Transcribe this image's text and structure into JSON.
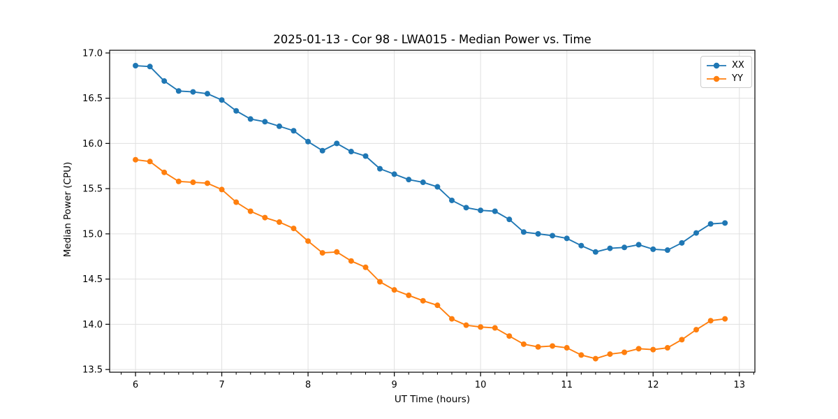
{
  "figure": {
    "title": "2025-01-13 - Cor 98 - LWA015 - Median Power vs. Time"
  },
  "chart_data": {
    "type": "line",
    "title": "2025-01-13 - Cor 98 - LWA015 - Median Power vs. Time",
    "xlabel": "UT Time (hours)",
    "ylabel": "Median Power (CPU)",
    "xlim": [
      5.7,
      13.18
    ],
    "ylim": [
      13.47,
      17.03
    ],
    "xticks": [
      6,
      7,
      8,
      9,
      10,
      11,
      12,
      13
    ],
    "xtick_labels": [
      "6",
      "7",
      "8",
      "9",
      "10",
      "11",
      "12",
      "13"
    ],
    "yticks": [
      13.5,
      14.0,
      14.5,
      15.0,
      15.5,
      16.0,
      16.5,
      17.0
    ],
    "ytick_labels": [
      "13.5",
      "14.0",
      "14.5",
      "15.0",
      "15.5",
      "16.0",
      "16.5",
      "17.0"
    ],
    "minor_xtick_step": 0.1667,
    "grid": true,
    "grid_color": "#e0e0e0",
    "legend_position": "upper right",
    "x": [
      6.0,
      6.167,
      6.333,
      6.5,
      6.667,
      6.833,
      7.0,
      7.167,
      7.333,
      7.5,
      7.667,
      7.833,
      8.0,
      8.167,
      8.333,
      8.5,
      8.667,
      8.833,
      9.0,
      9.167,
      9.333,
      9.5,
      9.667,
      9.833,
      10.0,
      10.167,
      10.333,
      10.5,
      10.667,
      10.833,
      11.0,
      11.167,
      11.333,
      11.5,
      11.667,
      11.833,
      12.0,
      12.167,
      12.333,
      12.5,
      12.667,
      12.833
    ],
    "series": [
      {
        "name": "XX",
        "color": "#1f77b4",
        "values": [
          16.86,
          16.85,
          16.69,
          16.58,
          16.57,
          16.55,
          16.48,
          16.36,
          16.27,
          16.24,
          16.19,
          16.14,
          16.02,
          15.92,
          16.0,
          15.91,
          15.86,
          15.72,
          15.66,
          15.6,
          15.57,
          15.52,
          15.37,
          15.29,
          15.26,
          15.25,
          15.16,
          15.02,
          15.0,
          14.98,
          14.95,
          14.87,
          14.8,
          14.84,
          14.85,
          14.88,
          14.83,
          14.82,
          14.9,
          15.01,
          15.11,
          15.12
        ]
      },
      {
        "name": "YY",
        "color": "#ff7f0e",
        "values": [
          15.82,
          15.8,
          15.68,
          15.58,
          15.57,
          15.56,
          15.49,
          15.35,
          15.25,
          15.18,
          15.13,
          15.06,
          14.92,
          14.79,
          14.8,
          14.7,
          14.63,
          14.47,
          14.38,
          14.32,
          14.26,
          14.21,
          14.06,
          13.99,
          13.97,
          13.96,
          13.87,
          13.78,
          13.75,
          13.76,
          13.74,
          13.66,
          13.62,
          13.67,
          13.69,
          13.73,
          13.72,
          13.74,
          13.83,
          13.94,
          14.04,
          14.06
        ]
      }
    ]
  }
}
